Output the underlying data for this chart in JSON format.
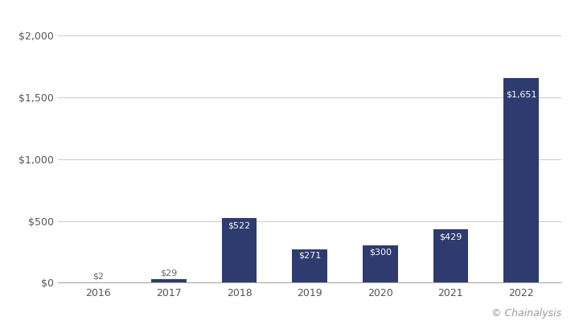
{
  "categories": [
    "2016",
    "2017",
    "2018",
    "2019",
    "2020",
    "2021",
    "2022"
  ],
  "values": [
    2,
    29,
    522,
    271,
    300,
    429,
    1651
  ],
  "labels": [
    "$2",
    "$29",
    "$522",
    "$271",
    "$300",
    "$429",
    "$1,651"
  ],
  "bar_color": "#2e3b6e",
  "background_color": "#ffffff",
  "grid_color": "#d0d0d0",
  "yticks": [
    0,
    500,
    1000,
    1500,
    2000
  ],
  "ytick_labels": [
    "$0",
    "$500",
    "$1,000",
    "$1,500",
    "$2,000"
  ],
  "ylim": [
    0,
    2100
  ],
  "watermark": "© Chainalysis",
  "label_color": "#ffffff",
  "small_label_color": "#666666",
  "label_fontsize": 8.0,
  "tick_fontsize": 9,
  "watermark_fontsize": 9,
  "bar_width": 0.5
}
